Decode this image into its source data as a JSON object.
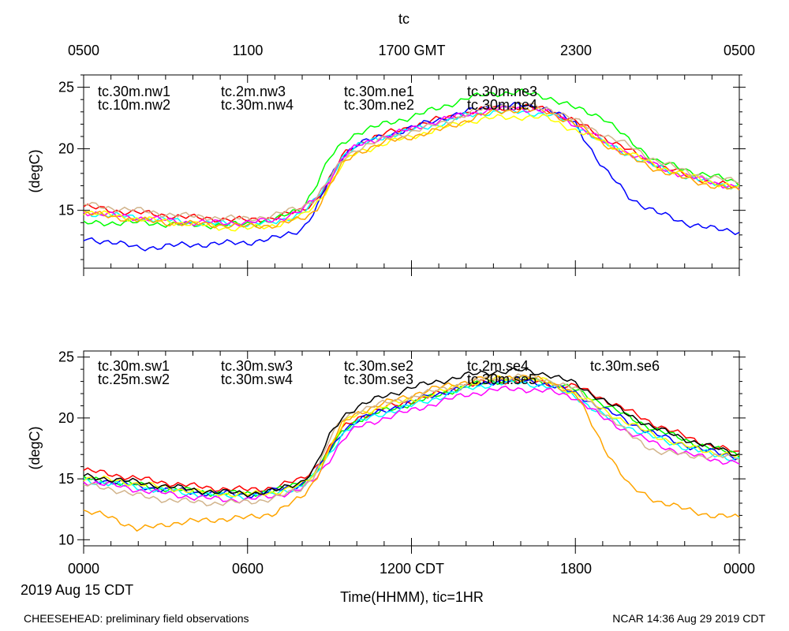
{
  "title": "tc",
  "top_axis_labels": [
    "0500",
    "1100",
    "1700 GMT",
    "2300",
    "0500"
  ],
  "bottom_axis_labels": [
    "0000",
    "0600",
    "1200 CDT",
    "1800",
    "0000"
  ],
  "date_label": "2019 Aug 15 CDT",
  "xlabel": "Time(HHMM), tic=1HR",
  "footer_left": "CHEESEHEAD: preliminary field observations",
  "footer_right": "NCAR 14:36 Aug 29 2019 CDT",
  "colors": {
    "red": "#ff0000",
    "green": "#00ff00",
    "blue": "#0000ff",
    "cyan": "#00ffff",
    "magenta": "#ff00ff",
    "yellow": "#ffff00",
    "orange": "#ffa500",
    "tan": "#d2b48c",
    "black": "#000000"
  },
  "chart_data": [
    {
      "type": "line",
      "ylabel": "(degC)",
      "xlim": [
        0,
        24
      ],
      "ylim": [
        10.3,
        26.0
      ],
      "yticks": [
        15,
        20,
        25
      ],
      "yticklabels": [
        "15",
        "20",
        "25"
      ],
      "grid": false,
      "legend": "top",
      "x": [
        0,
        1,
        2,
        3,
        4,
        5,
        6,
        7,
        8,
        8.5,
        9,
        9.5,
        10,
        11,
        12,
        13,
        14,
        15,
        16,
        17,
        18,
        19,
        20,
        21,
        22,
        23,
        24
      ],
      "series": [
        {
          "name": "tc.30m.nw1",
          "color": "red",
          "values": [
            15.3,
            15.0,
            14.8,
            14.6,
            14.4,
            14.3,
            14.2,
            14.4,
            15.0,
            15.8,
            17.5,
            19.5,
            20.4,
            21.2,
            21.8,
            22.4,
            22.9,
            23.3,
            23.4,
            23.2,
            22.2,
            21.0,
            19.8,
            18.7,
            17.9,
            17.3,
            16.8
          ]
        },
        {
          "name": "tc.10m.nw2",
          "color": "green",
          "values": [
            13.9,
            14.0,
            14.0,
            13.9,
            13.8,
            13.8,
            13.9,
            14.2,
            15.2,
            17.0,
            19.2,
            20.5,
            21.3,
            22.0,
            22.6,
            23.3,
            24.1,
            24.5,
            24.6,
            24.2,
            23.3,
            22.6,
            20.6,
            19.0,
            18.3,
            17.8,
            17.2
          ]
        },
        {
          "name": "tc.2m.nw3",
          "color": "blue",
          "values": [
            12.6,
            12.5,
            11.9,
            12.1,
            12.2,
            12.3,
            12.4,
            12.7,
            13.5,
            15.0,
            17.5,
            19.5,
            20.4,
            21.0,
            21.7,
            22.4,
            23.0,
            23.5,
            23.5,
            23.3,
            22.0,
            18.5,
            16.0,
            14.8,
            14.0,
            13.5,
            13.3
          ]
        },
        {
          "name": "tc.30m.nw4",
          "color": "cyan",
          "values": [
            14.8,
            14.6,
            14.4,
            14.2,
            14.0,
            13.9,
            13.9,
            14.0,
            14.8,
            15.8,
            17.5,
            19.5,
            20.2,
            21.0,
            21.5,
            22.0,
            22.7,
            23.0,
            23.0,
            22.8,
            22.0,
            20.5,
            19.5,
            18.5,
            17.8,
            17.2,
            16.9
          ]
        },
        {
          "name": "tc.30m.ne1",
          "color": "magenta",
          "values": [
            14.9,
            14.6,
            14.4,
            14.2,
            14.0,
            14.0,
            14.0,
            14.2,
            15.0,
            16.0,
            17.5,
            19.4,
            20.2,
            21.0,
            21.6,
            22.3,
            22.8,
            23.2,
            23.3,
            23.0,
            22.0,
            20.6,
            19.6,
            18.6,
            17.8,
            17.3,
            16.8
          ]
        },
        {
          "name": "tc.30m.ne2",
          "color": "yellow",
          "values": [
            14.9,
            14.6,
            14.3,
            14.1,
            13.9,
            13.6,
            13.5,
            13.8,
            14.5,
            15.5,
            17.0,
            18.8,
            19.7,
            20.4,
            21.0,
            21.6,
            22.2,
            22.5,
            22.6,
            22.5,
            21.5,
            20.6,
            19.6,
            18.6,
            17.9,
            17.3,
            16.8
          ]
        },
        {
          "name": "tc.30m.ne3",
          "color": "orange",
          "values": [
            14.8,
            14.5,
            14.2,
            14.0,
            13.9,
            13.8,
            13.7,
            13.8,
            14.3,
            15.0,
            17.0,
            18.8,
            19.7,
            20.5,
            21.0,
            21.5,
            22.3,
            23.0,
            23.2,
            23.0,
            22.0,
            20.5,
            19.3,
            18.3,
            17.6,
            17.0,
            16.6
          ]
        },
        {
          "name": "tc.30m.ne4",
          "color": "tan",
          "values": [
            15.5,
            15.2,
            15.0,
            14.7,
            14.5,
            14.4,
            14.3,
            14.6,
            15.3,
            16.0,
            17.5,
            19.2,
            20.0,
            20.8,
            21.4,
            22.0,
            22.8,
            23.5,
            23.6,
            23.3,
            22.3,
            21.2,
            20.2,
            19.0,
            18.2,
            17.6,
            17.4
          ]
        }
      ]
    },
    {
      "type": "line",
      "ylabel": "(degC)",
      "xlim": [
        0,
        24
      ],
      "ylim": [
        9.5,
        25.5
      ],
      "yticks": [
        10,
        15,
        20,
        25
      ],
      "yticklabels": [
        "10",
        "15",
        "20",
        "25"
      ],
      "grid": false,
      "legend": "top",
      "x": [
        0,
        1,
        2,
        3,
        4,
        5,
        6,
        7,
        8,
        8.5,
        9,
        9.5,
        10,
        11,
        12,
        13,
        14,
        15,
        16,
        17,
        18,
        19,
        20,
        21,
        22,
        23,
        24
      ],
      "series": [
        {
          "name": "tc.30m.sw1",
          "color": "red",
          "values": [
            15.7,
            15.4,
            15.0,
            14.7,
            14.4,
            14.2,
            14.1,
            14.3,
            15.0,
            16.0,
            17.5,
            19.2,
            20.0,
            20.8,
            21.4,
            22.0,
            22.7,
            23.0,
            23.1,
            22.8,
            22.6,
            21.6,
            20.5,
            19.4,
            18.5,
            17.7,
            17.1
          ]
        },
        {
          "name": "tc.25m.sw2",
          "color": "green",
          "values": [
            15.0,
            14.8,
            14.5,
            14.2,
            14.0,
            13.8,
            13.8,
            14.0,
            14.7,
            15.6,
            17.2,
            19.0,
            19.8,
            20.6,
            21.2,
            21.9,
            22.6,
            23.0,
            23.2,
            23.0,
            22.3,
            21.2,
            20.0,
            19.0,
            18.2,
            17.5,
            17.0
          ]
        },
        {
          "name": "tc.30m.sw3",
          "color": "blue",
          "values": [
            15.0,
            14.8,
            14.4,
            14.1,
            13.9,
            13.8,
            13.7,
            14.0,
            14.6,
            15.5,
            17.2,
            19.0,
            19.8,
            20.6,
            21.3,
            22.0,
            22.6,
            23.0,
            23.1,
            22.8,
            22.0,
            20.8,
            19.6,
            18.6,
            17.8,
            17.2,
            16.8
          ]
        },
        {
          "name": "tc.30m.sw4",
          "color": "cyan",
          "values": [
            14.9,
            14.6,
            14.3,
            14.0,
            13.8,
            13.6,
            13.6,
            13.8,
            14.4,
            15.3,
            17.0,
            18.8,
            19.6,
            20.4,
            21.0,
            21.7,
            22.4,
            22.8,
            22.9,
            22.6,
            21.8,
            20.2,
            19.2,
            18.3,
            17.6,
            17.0,
            16.6
          ]
        },
        {
          "name": "tc.30m.se2",
          "color": "magenta",
          "values": [
            14.8,
            14.5,
            14.1,
            13.8,
            13.5,
            13.3,
            13.3,
            13.6,
            14.2,
            15.0,
            16.6,
            18.3,
            19.2,
            20.0,
            20.6,
            21.3,
            21.9,
            22.3,
            22.4,
            22.2,
            21.7,
            20.0,
            18.8,
            17.8,
            17.1,
            16.6,
            16.3
          ]
        },
        {
          "name": "tc.30m.se3",
          "color": "yellow",
          "values": [
            15.1,
            14.9,
            14.6,
            14.3,
            14.0,
            13.8,
            13.7,
            13.9,
            14.5,
            15.5,
            17.5,
            19.5,
            20.3,
            21.0,
            21.5,
            22.1,
            22.8,
            23.2,
            23.3,
            23.0,
            22.0,
            20.7,
            19.5,
            18.5,
            17.7,
            17.2,
            16.8
          ]
        },
        {
          "name": "tc.2m.se4",
          "color": "orange",
          "values": [
            12.3,
            11.9,
            10.8,
            11.3,
            11.5,
            11.7,
            11.8,
            12.2,
            13.5,
            15.0,
            17.5,
            19.6,
            20.4,
            21.2,
            21.9,
            22.5,
            23.0,
            23.4,
            23.4,
            23.0,
            22.0,
            17.8,
            14.3,
            13.2,
            12.5,
            12.0,
            11.8
          ]
        },
        {
          "name": "tc.30m.se5",
          "color": "tan",
          "values": [
            14.5,
            14.2,
            13.6,
            13.3,
            13.1,
            13.0,
            13.1,
            13.4,
            14.2,
            15.5,
            18.2,
            20.0,
            20.6,
            21.2,
            21.7,
            22.3,
            22.9,
            23.3,
            23.4,
            23.1,
            22.4,
            20.5,
            18.6,
            17.2,
            17.0,
            16.8,
            16.8
          ]
        },
        {
          "name": "tc.30m.se6",
          "color": "black",
          "values": [
            15.2,
            15.0,
            14.7,
            14.4,
            14.1,
            13.9,
            13.8,
            14.0,
            14.8,
            16.0,
            18.5,
            20.2,
            20.9,
            21.8,
            22.5,
            23.0,
            23.5,
            23.8,
            23.9,
            23.6,
            22.8,
            21.5,
            20.2,
            19.1,
            18.3,
            17.6,
            17.0
          ]
        }
      ]
    }
  ]
}
